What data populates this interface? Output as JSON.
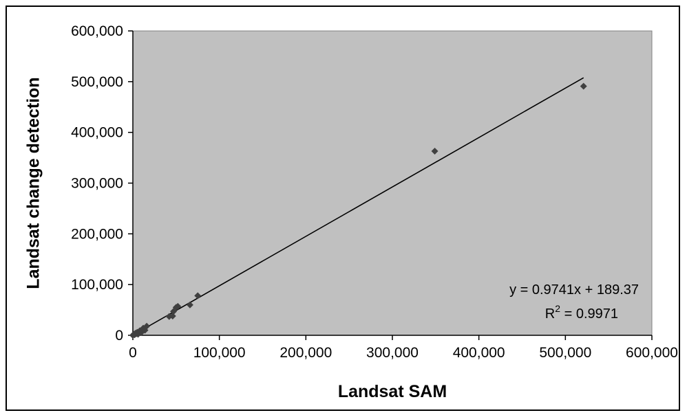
{
  "chart_data": {
    "type": "scatter",
    "title": "",
    "xlabel": "Landsat SAM",
    "ylabel": "Landsat change detection",
    "xlim": [
      0,
      600000
    ],
    "ylim": [
      0,
      600000
    ],
    "grid": false,
    "x_ticks": [
      "0",
      "100,000",
      "200,000",
      "300,000",
      "400,000",
      "500,000",
      "600,000"
    ],
    "y_ticks": [
      "0",
      "100,000",
      "200,000",
      "300,000",
      "400,000",
      "500,000",
      "600,000"
    ],
    "x_tick_values": [
      0,
      100000,
      200000,
      300000,
      400000,
      500000,
      600000
    ],
    "y_tick_values": [
      0,
      100000,
      200000,
      300000,
      400000,
      500000,
      600000
    ],
    "series": [
      {
        "marker": "diamond",
        "points": [
          {
            "x": 0,
            "y": 0
          },
          {
            "x": 1000,
            "y": 2000
          },
          {
            "x": 2000,
            "y": 1000
          },
          {
            "x": 3000,
            "y": 4000
          },
          {
            "x": 4000,
            "y": 3000
          },
          {
            "x": 5000,
            "y": 6000
          },
          {
            "x": 6000,
            "y": 2000
          },
          {
            "x": 8000,
            "y": 9000
          },
          {
            "x": 10000,
            "y": 6000
          },
          {
            "x": 12000,
            "y": 14000
          },
          {
            "x": 14000,
            "y": 10000
          },
          {
            "x": 16000,
            "y": 18000
          },
          {
            "x": 42000,
            "y": 37000
          },
          {
            "x": 46000,
            "y": 38000
          },
          {
            "x": 47000,
            "y": 47000
          },
          {
            "x": 50000,
            "y": 55000
          },
          {
            "x": 52000,
            "y": 57000
          },
          {
            "x": 66000,
            "y": 60000
          },
          {
            "x": 75000,
            "y": 78000
          },
          {
            "x": 349000,
            "y": 363000
          },
          {
            "x": 521000,
            "y": 491000
          }
        ]
      }
    ],
    "trendline": {
      "type": "linear",
      "slope": 0.9741,
      "intercept": 189.37,
      "x_range": [
        0,
        521000
      ],
      "equation_label": "y = 0.9741x + 189.37",
      "r2_prefix": "R",
      "r2_sup": "2",
      "r2_value": " = 0.9971"
    },
    "colors": {
      "plot_background": "#c0c0c0",
      "marker": "#404040",
      "trendline": "#000000"
    }
  }
}
